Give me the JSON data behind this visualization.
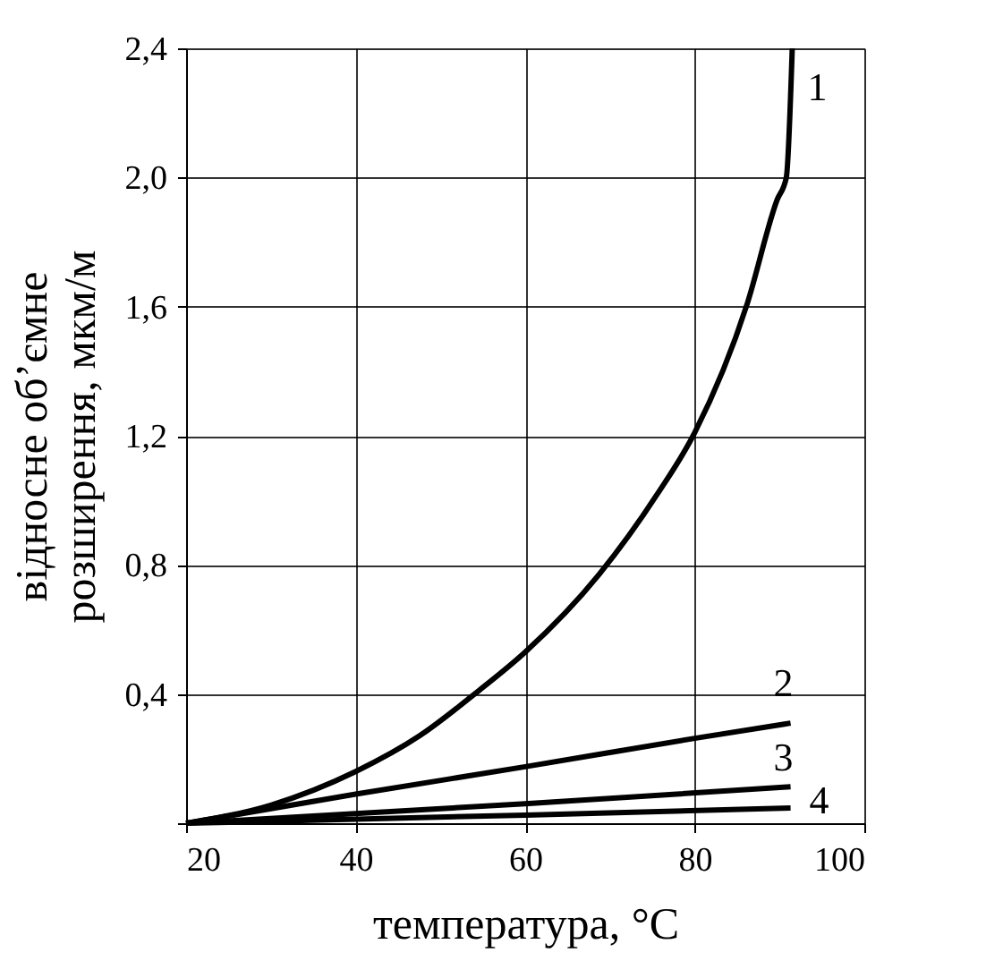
{
  "chart_data": {
    "type": "line",
    "xlabel": "температура, °С",
    "ylabel": "відносне об’ємне\nрозширення, мкм/м",
    "xlim": [
      20,
      100
    ],
    "ylim": [
      0,
      2.4
    ],
    "xticks": [
      20,
      40,
      60,
      80,
      100
    ],
    "yticks": [
      {
        "value": 0,
        "label": null
      },
      {
        "value": 0.4,
        "label": "0,4"
      },
      {
        "value": 0.8,
        "label": "0,8"
      },
      {
        "value": 1.2,
        "label": "1,2"
      },
      {
        "value": 1.6,
        "label": "1,6"
      },
      {
        "value": 2.0,
        "label": "2,0"
      },
      {
        "value": 2.4,
        "label": "2,4"
      }
    ],
    "grid": true,
    "legend": false,
    "line_style": "solid",
    "marker": "none",
    "series": [
      {
        "name": "1",
        "color": "#000000",
        "x": [
          20,
          30,
          40,
          47.5,
          54.5,
          60,
          68.7,
          75.6,
          80,
          86.2,
          89.7,
          90.8,
          91.5
        ],
        "values": [
          0,
          0.056,
          0.16,
          0.27,
          0.41,
          0.53,
          0.77,
          1.02,
          1.21,
          1.61,
          1.93,
          2.0,
          2.4
        ]
      },
      {
        "name": "2",
        "color": "#000000",
        "x": [
          20,
          40,
          60,
          80,
          91.3
        ],
        "values": [
          0,
          0.09,
          0.175,
          0.263,
          0.31
        ]
      },
      {
        "name": "3",
        "color": "#000000",
        "x": [
          20,
          60,
          91.3
        ],
        "values": [
          0,
          0.06,
          0.113
        ]
      },
      {
        "name": "4",
        "color": "#000000",
        "x": [
          20,
          60,
          91.3
        ],
        "values": [
          0,
          0.025,
          0.047
        ]
      }
    ]
  }
}
